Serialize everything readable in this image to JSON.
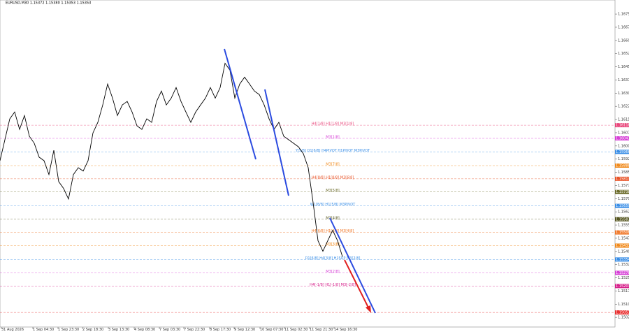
{
  "chart_data": {
    "type": "line",
    "title": "EURUSD,M30 1.15372 1.15380 1.15353 1.15353",
    "color": "#000000",
    "x": [
      0,
      7,
      14,
      21,
      28,
      35,
      42,
      49,
      56,
      63,
      70,
      77,
      84,
      91,
      98,
      105,
      112,
      119,
      126,
      133,
      140,
      147,
      154,
      161,
      168,
      175,
      182,
      189,
      196,
      203,
      210,
      217,
      224,
      231,
      238,
      245,
      252,
      259,
      266,
      273,
      280,
      287,
      294,
      301,
      308,
      315,
      322,
      329,
      336,
      343,
      350,
      357,
      364,
      371,
      378,
      385,
      392,
      399,
      406,
      413,
      420,
      427,
      434,
      441,
      448,
      455,
      462,
      469,
      476,
      483,
      490
    ],
    "values": [
      1.15916,
      1.16035,
      1.16154,
      1.16193,
      1.16094,
      1.16173,
      1.16055,
      1.16015,
      1.15936,
      1.15916,
      1.15837,
      1.15975,
      1.15797,
      1.15758,
      1.15698,
      1.15837,
      1.15876,
      1.15857,
      1.15916,
      1.16074,
      1.16134,
      1.16233,
      1.16352,
      1.16272,
      1.16173,
      1.16233,
      1.16253,
      1.16193,
      1.16114,
      1.16094,
      1.16154,
      1.16134,
      1.16253,
      1.16312,
      1.16233,
      1.16272,
      1.16332,
      1.16253,
      1.16193,
      1.16134,
      1.16193,
      1.16233,
      1.16272,
      1.16332,
      1.16272,
      1.16332,
      1.1647,
      1.16431,
      1.16272,
      1.16352,
      1.16391,
      1.16352,
      1.16312,
      1.16292,
      1.16233,
      1.16154,
      1.16094,
      1.16134,
      1.16055,
      1.16035,
      1.16015,
      1.15995,
      1.15956,
      1.15876,
      1.15678,
      1.15461,
      1.15401,
      1.15461,
      1.1552,
      1.15461,
      1.1537
    ],
    "xlim": [
      0,
      880
    ],
    "xticks": [
      {
        "value": 2,
        "label": "31 Aug 2026"
      },
      {
        "value": 47,
        "label": "1 Sep 04:30"
      },
      {
        "value": 83,
        "label": "1 Sep 23:30"
      },
      {
        "value": 118,
        "label": "2 Sep 18:30"
      },
      {
        "value": 155,
        "label": "3 Sep 13:30"
      },
      {
        "value": 192,
        "label": "4 Sep 08:30"
      },
      {
        "value": 228,
        "label": "7 Sep 03:30"
      },
      {
        "value": 263,
        "label": "7 Sep 22:30"
      },
      {
        "value": 300,
        "label": "8 Sep 17:30"
      },
      {
        "value": 335,
        "label": "9 Sep 12:30"
      },
      {
        "value": 372,
        "label": "10 Sep 07:30"
      },
      {
        "value": 407,
        "label": "11 Sep 02:30"
      },
      {
        "value": 443,
        "label": "11 Sep 21:30"
      },
      {
        "value": 478,
        "label": "14 Sep 16:30"
      }
    ],
    "ylim": [
      1.1497,
      1.1681
    ],
    "yticks": [
      1.15025,
      {
        "value": 1.151,
        "label": "1.15100"
      },
      1.15175,
      {
        "value": 1.1525,
        "label": "1.15250"
      },
      1.15325,
      {
        "value": 1.154,
        "label": "1.15400"
      },
      1.15475,
      {
        "value": 1.1555,
        "label": "1.15550"
      },
      1.15625,
      {
        "value": 1.157,
        "label": "1.15700"
      },
      1.15775,
      {
        "value": 1.1585,
        "label": "1.15850"
      },
      1.15925,
      {
        "value": 1.16,
        "label": "1.16000"
      },
      1.16075,
      {
        "value": 1.1615,
        "label": "1.16150"
      },
      1.16225,
      {
        "value": 1.163,
        "label": "1.16300"
      },
      1.16375,
      {
        "value": 1.1645,
        "label": "1.16450"
      },
      1.16525,
      {
        "value": 1.166,
        "label": "1.16600"
      },
      1.16675,
      {
        "value": 1.1675,
        "label": "1.16750"
      }
    ],
    "levels": [
      {
        "value": 1.16118,
        "label": "H4[1/8] H1[1/8] M3[1/8]",
        "color": "#e8457a"
      },
      {
        "value": 1.16043,
        "label": "M3[1/8]",
        "color": "#d63fd6"
      },
      {
        "value": 1.15966,
        "label": "Y[5/8] D1[6/8] H4PIVOT H1PIVOT M3PIVOT",
        "color": "#3a8ee6"
      },
      {
        "value": 1.15888,
        "label": "M3[7/8]",
        "color": "#f08a1c"
      },
      {
        "value": 1.15813,
        "label": "H4[8/8] H1[8/8] M3[6/8]",
        "color": "#e8552a"
      },
      {
        "value": 1.15738,
        "label": "M3[5/8]",
        "color": "#6b6b2a"
      },
      {
        "value": 1.15659,
        "label": "W1[8/8] H1[5/8] M3PIVOT",
        "color": "#3a8ee6"
      },
      {
        "value": 1.15583,
        "label": "M3[4/8]",
        "color": "#55551f"
      },
      {
        "value": 1.15508,
        "label": "H4[6/8] H1[4/8] M3[4/8]",
        "color": "#f0782a"
      },
      {
        "value": 1.15433,
        "label": "M3[3/8]",
        "color": "#f08a1c"
      },
      {
        "value": 1.15354,
        "label": "D1[6/8] H4[3/8] H1SUP M3[2/8]",
        "color": "#3a8ee6"
      },
      {
        "value": 1.15278,
        "label": "M3[2/8]",
        "color": "#d63fd6"
      },
      {
        "value": 1.15203,
        "label": "H4[-1/8] H1[-1/8] M3[-2/8]",
        "color": "#d6208a"
      },
      {
        "value": 1.15053,
        "label": "1.15053",
        "color": "#e83030"
      }
    ]
  }
}
